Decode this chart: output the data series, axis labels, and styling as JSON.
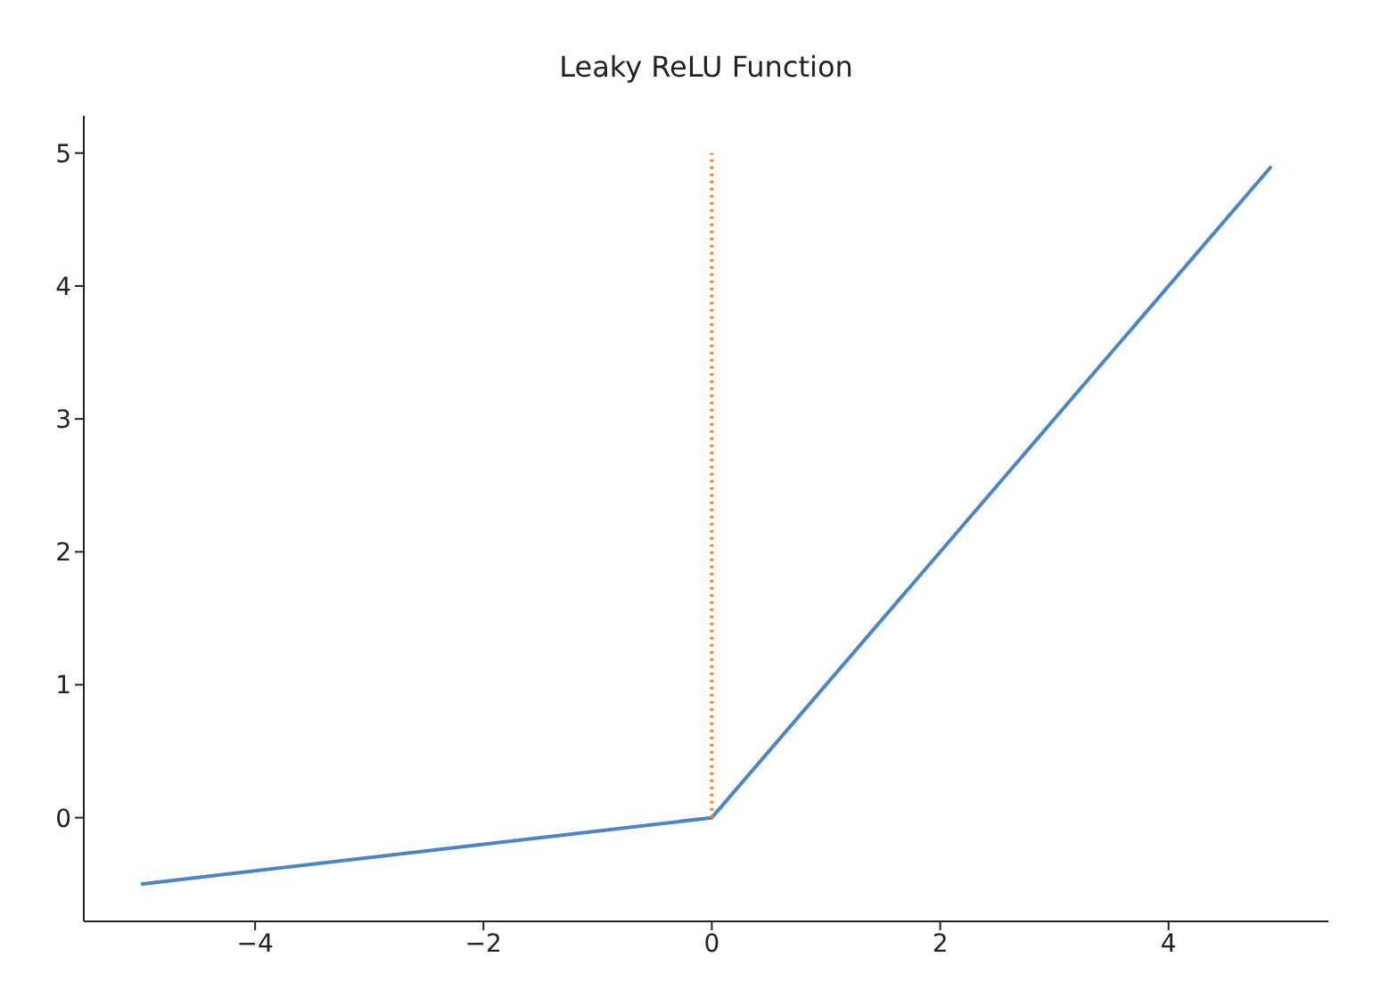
{
  "chart_data": {
    "type": "line",
    "title": "Leaky ReLU Function",
    "series": [
      {
        "color": "#4a86c5",
        "x": [
          -5,
          0,
          4.9
        ],
        "values": [
          -0.5,
          0,
          4.9
        ],
        "line_style": "solid"
      },
      {
        "color": "#ff7f0e",
        "x": [
          0,
          0
        ],
        "values": [
          0,
          5
        ],
        "line_style": "dotted"
      }
    ],
    "xlim": [
      -5.5,
      5.4
    ],
    "ylim": [
      -0.78,
      5.28
    ],
    "xticks": [
      {
        "value": -4,
        "label": "−4"
      },
      {
        "value": -2,
        "label": "−2"
      },
      0,
      2,
      4
    ],
    "yticks": [
      0,
      1,
      2,
      3,
      4,
      5
    ],
    "grid": false,
    "legend": false,
    "marker": "none"
  }
}
